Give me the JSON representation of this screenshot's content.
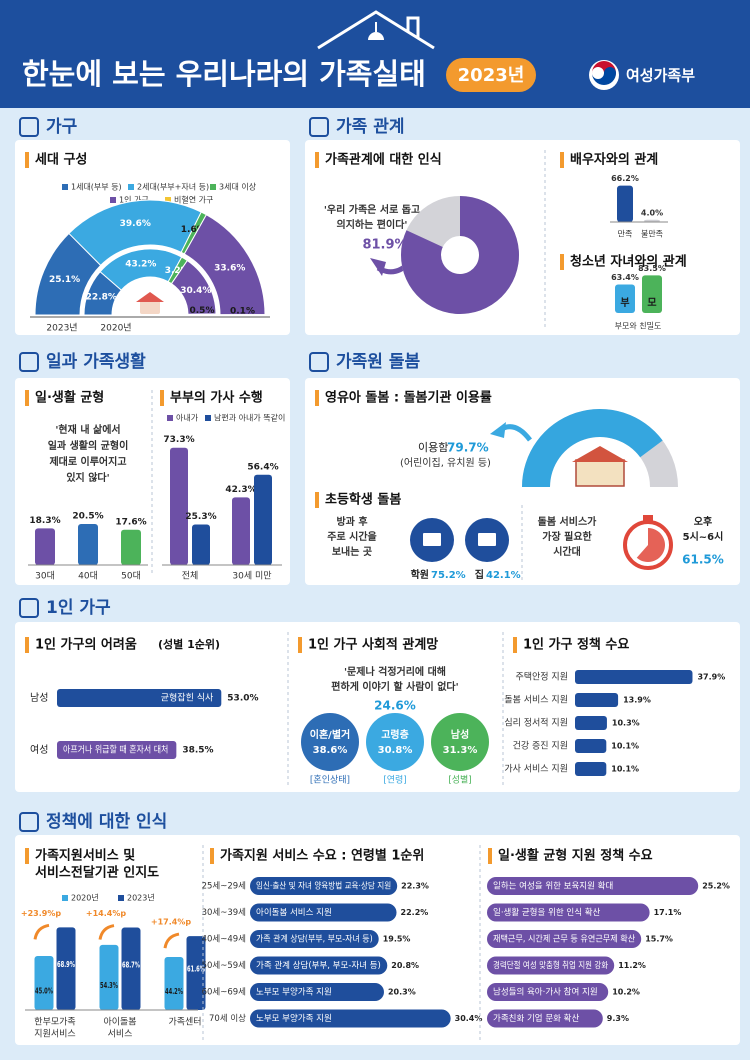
{
  "header": {
    "title": "한눈에 보는 우리나라의 가족실태",
    "year": "2023년",
    "ministry": "여성가족부"
  },
  "household": {
    "heading": "가구",
    "subheading": "세대 구성",
    "legend": [
      "1세대(부부 등)",
      "2세대(부부+자녀 등)",
      "3세대 이상",
      "1인 가구",
      "비혈연 가구"
    ],
    "colors": [
      "#2d6db5",
      "#3ba9e1",
      "#4cb35a",
      "#6d50a6",
      "#f3c533"
    ],
    "rings": [
      {
        "name": "2023년",
        "values": [
          25.1,
          39.6,
          1.6,
          33.6,
          0.1
        ],
        "value_labels": [
          "25.1%",
          "39.6%",
          "1.6%",
          "33.6%",
          "0.1%"
        ]
      },
      {
        "name": "2020년",
        "values": [
          22.8,
          43.2,
          3.2,
          30.4,
          0.5
        ],
        "value_labels": [
          "22.8%",
          "43.2%",
          "3.2%",
          "30.4%",
          "0.5%"
        ]
      }
    ]
  },
  "family": {
    "heading": "가족 관계",
    "perception": {
      "subheading": "가족관계에 대한 인식",
      "quote_lines": [
        "'우리 가족은 서로 돕고",
        "의지하는 편이다'"
      ],
      "value": 81.9,
      "value_label": "81.9%",
      "color": "#6d50a6"
    },
    "spouse": {
      "subheading": "배우자와의 관계",
      "categories": [
        "만족",
        "불만족"
      ],
      "values": [
        66.2,
        4.0
      ],
      "value_labels": [
        "66.2%",
        "4.0%"
      ],
      "colors": [
        "#1f4e9c",
        "#cfcfd4"
      ]
    },
    "youth": {
      "subheading": "청소년 자녀와의 관계",
      "categories": [
        "부",
        "모"
      ],
      "values": [
        63.4,
        83.5
      ],
      "value_labels": [
        "63.4%",
        "83.5%"
      ],
      "colors": [
        "#3ba9e1",
        "#4cb35a"
      ],
      "caption": "부모와 친밀도"
    }
  },
  "work": {
    "heading": "일과 가족생활",
    "balance": {
      "subheading": "일·생활 균형",
      "quote_lines": [
        "'현재 내 삶에서",
        "일과 생활의 균형이",
        "제대로 이루어지고",
        "있지 않다'"
      ],
      "categories": [
        "30대",
        "40대",
        "50대"
      ],
      "values": [
        18.3,
        20.5,
        17.6
      ],
      "value_labels": [
        "18.3%",
        "20.5%",
        "17.6%"
      ],
      "colors": [
        "#6d50a6",
        "#2d6db5",
        "#4cb35a"
      ]
    },
    "chores": {
      "subheading": "부부의 가사 수행",
      "categories": [
        "전체",
        "30세 미만"
      ],
      "series": [
        {
          "name": "아내가",
          "color": "#6d50a6",
          "values": [
            73.3,
            42.3
          ],
          "value_labels": [
            "73.3%",
            "42.3%"
          ]
        },
        {
          "name": "남편과 아내가 똑같이",
          "color": "#1f4e9c",
          "values": [
            25.3,
            56.4
          ],
          "value_labels": [
            "25.3%",
            "56.4%"
          ]
        }
      ]
    }
  },
  "care": {
    "heading": "가족원 돌봄",
    "infant": {
      "subheading": "영유아 돌봄 : 돌봄기관 이용률",
      "label": "이용함",
      "value": 79.7,
      "value_label": "79.7%",
      "note": "(어린이집, 유치원 등)"
    },
    "school": {
      "subheading": "초등학생 돌봄",
      "place_lines": [
        "방과 후",
        "주로 시간을",
        "보내는 곳"
      ],
      "places": [
        {
          "name": "학원",
          "value": 75.2,
          "value_label": "75.2%"
        },
        {
          "name": "집",
          "value": 42.1,
          "value_label": "42.1%"
        }
      ],
      "need_lines": [
        "돌봄 서비스가",
        "가장 필요한",
        "시간대"
      ],
      "time_lines": [
        "오후",
        "5시~6시"
      ],
      "time_value": 61.5,
      "time_value_label": "61.5%"
    }
  },
  "single": {
    "heading": "1인 가구",
    "hardship": {
      "subheading": "1인 가구의 어려움",
      "note": "(성별 1순위)",
      "rows": [
        {
          "group": "남성",
          "item": "균형잡힌 식사",
          "value": 53.0,
          "value_label": "53.0%"
        },
        {
          "group": "여성",
          "item": "아프거나 위급할 때 혼자서 대처",
          "value": 38.5,
          "value_label": "38.5%"
        }
      ]
    },
    "network": {
      "subheading": "1인 가구 사회적 관계망",
      "quote_lines": [
        "'문제나 걱정거리에 대해",
        "편하게 이야기 할 사람이 없다'"
      ],
      "value": 24.6,
      "value_label": "24.6%",
      "groups": [
        {
          "name": "이혼/별거",
          "value": 38.6,
          "value_label": "38.6%",
          "category": "[혼인상태]",
          "color": "#2d6db5"
        },
        {
          "name": "고령층",
          "value": 30.8,
          "value_label": "30.8%",
          "category": "[연령]",
          "color": "#3ba9e1"
        },
        {
          "name": "남성",
          "value": 31.3,
          "value_label": "31.3%",
          "category": "[성별]",
          "color": "#4cb35a"
        }
      ]
    },
    "policy": {
      "subheading": "1인 가구 정책 수요",
      "items": [
        {
          "item": "주택안정 지원",
          "value": 37.9,
          "value_label": "37.9%"
        },
        {
          "item": "돌봄 서비스 지원",
          "value": 13.9,
          "value_label": "13.9%"
        },
        {
          "item": "심리 정서적 지원",
          "value": 10.3,
          "value_label": "10.3%"
        },
        {
          "item": "건강 증진 지원",
          "value": 10.1,
          "value_label": "10.1%"
        },
        {
          "item": "가사 서비스 지원",
          "value": 10.1,
          "value_label": "10.1%"
        }
      ]
    }
  },
  "policy": {
    "heading": "정책에 대한 인식",
    "awareness": {
      "subheading_lines": [
        "가족지원서비스 및",
        "서비스전달기관 인지도"
      ],
      "categories": [
        [
          "한부모가족",
          "지원서비스"
        ],
        [
          "아이돌봄",
          "서비스"
        ],
        [
          "가족센터"
        ]
      ],
      "series": [
        {
          "name": "2020년",
          "color": "#3ba9e1",
          "values": [
            45.0,
            54.3,
            44.2
          ],
          "value_labels": [
            "45.0%",
            "54.3%",
            "44.2%"
          ]
        },
        {
          "name": "2023년",
          "color": "#1f4e9c",
          "values": [
            68.9,
            68.7,
            61.6
          ],
          "value_labels": [
            "68.9%",
            "68.7%",
            "61.6%"
          ]
        }
      ],
      "changes": [
        "+23.9%p",
        "+14.4%p",
        "+17.4%p"
      ]
    },
    "age_demand": {
      "subheading": "가족지원 서비스 수요 : 연령별 1순위",
      "items": [
        {
          "age": "25세~29세",
          "item": "임신·출산 및 자녀 양육방법 교육·상담 지원",
          "value": 22.3,
          "value_label": "22.3%"
        },
        {
          "age": "30세~39세",
          "item": "아이돌봄 서비스 지원",
          "value": 22.2,
          "value_label": "22.2%"
        },
        {
          "age": "40세~49세",
          "item": "가족 관계 상담(부부, 부모-자녀 등)",
          "value": 19.5,
          "value_label": "19.5%"
        },
        {
          "age": "50세~59세",
          "item": "가족 관계 상담(부부, 부모-자녀 등)",
          "value": 20.8,
          "value_label": "20.8%"
        },
        {
          "age": "60세~69세",
          "item": "노부모 부양가족 지원",
          "value": 20.3,
          "value_label": "20.3%"
        },
        {
          "age": "70세 이상",
          "item": "노부모 부양가족 지원",
          "value": 30.4,
          "value_label": "30.4%"
        }
      ]
    },
    "balance_demand": {
      "subheading": "일·생활 균형 지원 정책 수요",
      "items": [
        {
          "item": "일하는 여성을 위한 보육지원 확대",
          "value": 25.2,
          "value_label": "25.2%"
        },
        {
          "item": "일·생활 균형을 위한 인식 확산",
          "value": 17.1,
          "value_label": "17.1%"
        },
        {
          "item": "재택근무, 시간제 근무 등 유연근무제 확산",
          "value": 15.7,
          "value_label": "15.7%"
        },
        {
          "item": "경력단절 여성 맞춤형 취업 지원 강화",
          "value": 11.2,
          "value_label": "11.2%"
        },
        {
          "item": "남성들의 육아·가사 참여 지원",
          "value": 10.2,
          "value_label": "10.2%"
        },
        {
          "item": "가족친화 기업 문화 확산",
          "value": 9.3,
          "value_label": "9.3%"
        }
      ]
    }
  }
}
